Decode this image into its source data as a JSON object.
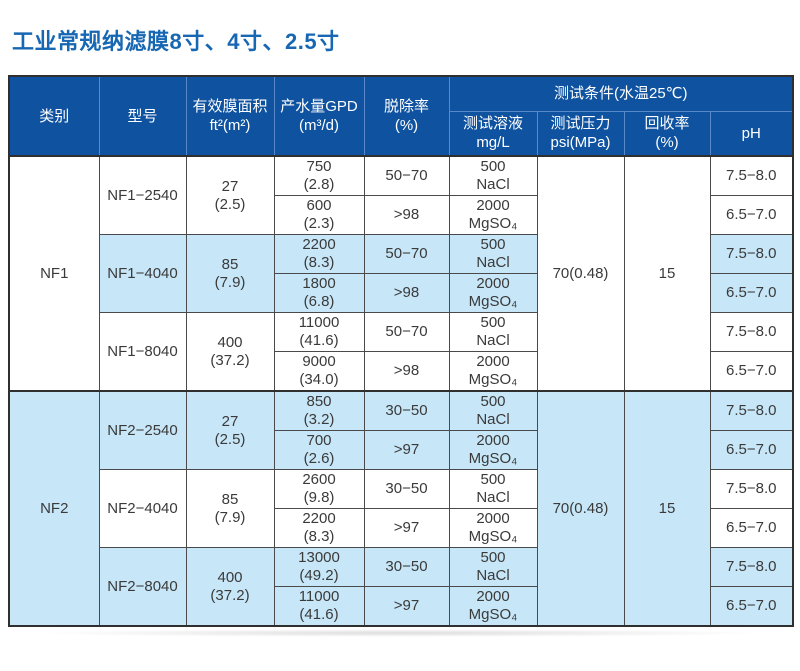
{
  "page": {
    "title": "工业常规纳滤膜8寸、4寸、2.5寸"
  },
  "colors": {
    "header_bg": "#0e52a0",
    "header_divider": "#5a88c8",
    "row_highlight": "#c7e6f7",
    "title_text": "#1767b3",
    "border_dark": "#2f2f2f"
  },
  "table": {
    "headers": {
      "category": "类别",
      "model": "型号",
      "area_l1": "有效膜面积",
      "area_l2": "ft²(m²)",
      "flow_l1": "产水量GPD",
      "flow_l2": "(m³/d)",
      "rejection_l1": "脱除率",
      "rejection_l2": "(%)",
      "conditions": "测试条件(水温25℃)",
      "solution_l1": "测试溶液",
      "solution_l2": "mg/L",
      "pressure_l1": "测试压力",
      "pressure_l2": "psi(MPa)",
      "recovery_l1": "回收率",
      "recovery_l2": "(%)",
      "ph": "pH"
    },
    "groups": [
      {
        "category": "NF1",
        "pressure": "70(0.48)",
        "recovery": "15",
        "models": [
          {
            "model": "NF1−2540",
            "area": [
              "27",
              "(2.5)"
            ],
            "shaded": false,
            "rows": [
              {
                "flow": [
                  "750",
                  "(2.8)"
                ],
                "rejection": "50−70",
                "solution": [
                  "500",
                  "NaCl"
                ],
                "ph": "7.5−8.0"
              },
              {
                "flow": [
                  "600",
                  "(2.3)"
                ],
                "rejection": ">98",
                "solution": [
                  "2000",
                  "MgSO₄"
                ],
                "ph": "6.5−7.0"
              }
            ]
          },
          {
            "model": "NF1−4040",
            "area": [
              "85",
              "(7.9)"
            ],
            "shaded": true,
            "rows": [
              {
                "flow": [
                  "2200",
                  "(8.3)"
                ],
                "rejection": "50−70",
                "solution": [
                  "500",
                  "NaCl"
                ],
                "ph": "7.5−8.0"
              },
              {
                "flow": [
                  "1800",
                  "(6.8)"
                ],
                "rejection": ">98",
                "solution": [
                  "2000",
                  "MgSO₄"
                ],
                "ph": "6.5−7.0"
              }
            ]
          },
          {
            "model": "NF1−8040",
            "area": [
              "400",
              "(37.2)"
            ],
            "shaded": false,
            "rows": [
              {
                "flow": [
                  "11000",
                  "(41.6)"
                ],
                "rejection": "50−70",
                "solution": [
                  "500",
                  "NaCl"
                ],
                "ph": "7.5−8.0"
              },
              {
                "flow": [
                  "9000",
                  "(34.0)"
                ],
                "rejection": ">98",
                "solution": [
                  "2000",
                  "MgSO₄"
                ],
                "ph": "6.5−7.0"
              }
            ]
          }
        ]
      },
      {
        "category": "NF2",
        "pressure": "70(0.48)",
        "recovery": "15",
        "models": [
          {
            "model": "NF2−2540",
            "area": [
              "27",
              "(2.5)"
            ],
            "shaded": true,
            "rows": [
              {
                "flow": [
                  "850",
                  "(3.2)"
                ],
                "rejection": "30−50",
                "solution": [
                  "500",
                  "NaCl"
                ],
                "ph": "7.5−8.0"
              },
              {
                "flow": [
                  "700",
                  "(2.6)"
                ],
                "rejection": ">97",
                "solution": [
                  "2000",
                  "MgSO₄"
                ],
                "ph": "6.5−7.0"
              }
            ]
          },
          {
            "model": "NF2−4040",
            "area": [
              "85",
              "(7.9)"
            ],
            "shaded": false,
            "rows": [
              {
                "flow": [
                  "2600",
                  "(9.8)"
                ],
                "rejection": "30−50",
                "solution": [
                  "500",
                  "NaCl"
                ],
                "ph": "7.5−8.0"
              },
              {
                "flow": [
                  "2200",
                  "(8.3)"
                ],
                "rejection": ">97",
                "solution": [
                  "2000",
                  "MgSO₄"
                ],
                "ph": "6.5−7.0"
              }
            ]
          },
          {
            "model": "NF2−8040",
            "area": [
              "400",
              "(37.2)"
            ],
            "shaded": true,
            "rows": [
              {
                "flow": [
                  "13000",
                  "(49.2)"
                ],
                "rejection": "30−50",
                "solution": [
                  "500",
                  "NaCl"
                ],
                "ph": "7.5−8.0"
              },
              {
                "flow": [
                  "11000",
                  "(41.6)"
                ],
                "rejection": ">97",
                "solution": [
                  "2000",
                  "MgSO₄"
                ],
                "ph": "6.5−7.0"
              }
            ]
          }
        ]
      }
    ]
  }
}
